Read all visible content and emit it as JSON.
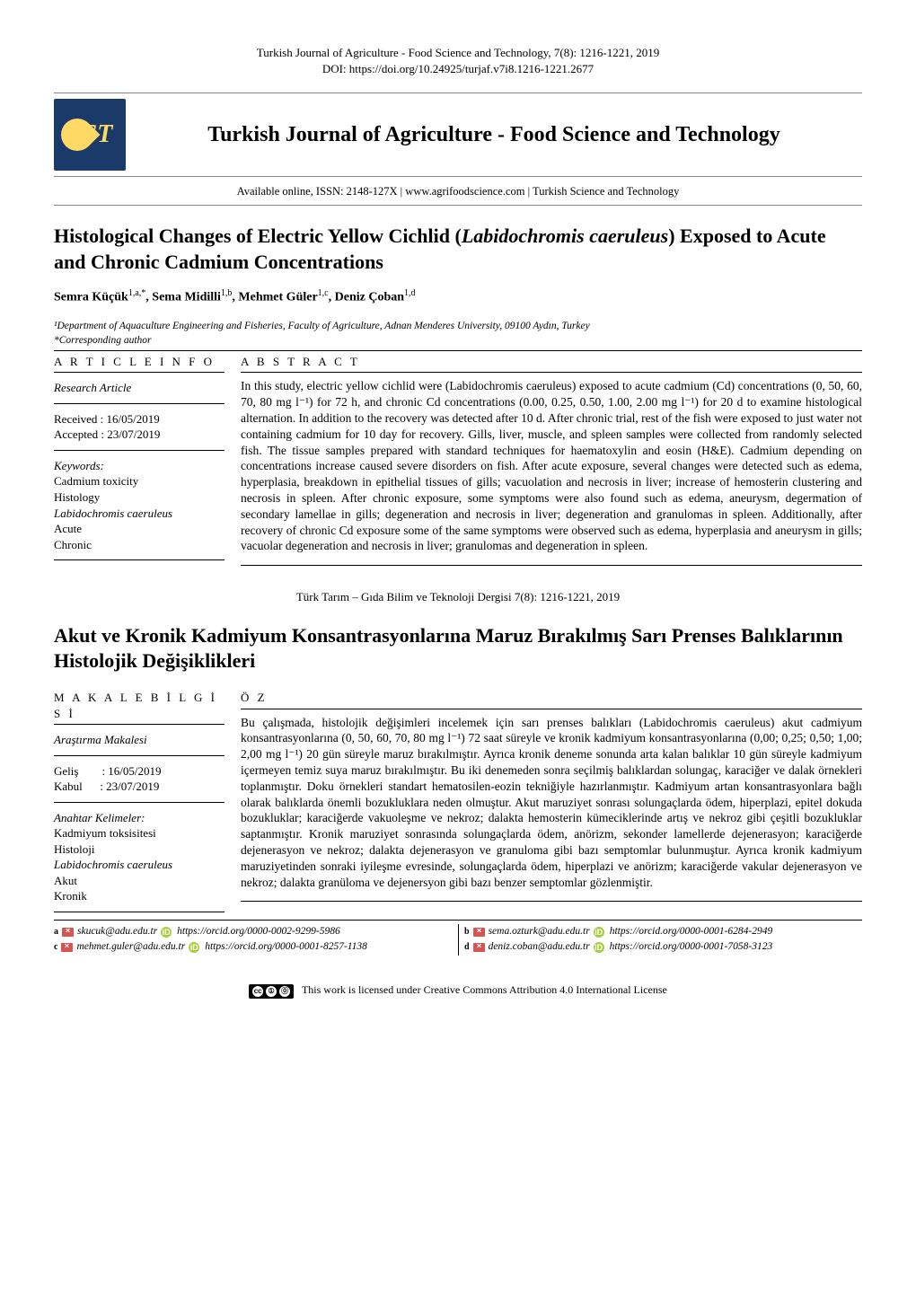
{
  "header": {
    "journal_full": "Turkish Journal of Agriculture - Food Science and Technology, 7(8): 1216-1221, 2019",
    "doi": "DOI: https://doi.org/10.24925/turjaf.v7i8.1216-1221.2677",
    "journal_title": "Turkish Journal of Agriculture - Food Science and Technology",
    "logo_text": "ST",
    "subline": "Available online, ISSN: 2148-127X  |  www.agrifoodscience.com  |  Turkish Science and Technology"
  },
  "english": {
    "title_pre": "Histological Changes of Electric Yellow Cichlid (",
    "title_italic": "Labidochromis caeruleus",
    "title_post": ") Exposed to Acute and Chronic Cadmium Concentrations",
    "authors_html": "Semra Küçük",
    "author1": "Semra Küçük",
    "author1_sup": "1,a,*",
    "author2": ", Sema Midilli",
    "author2_sup": "1,b",
    "author3": ", Mehmet Güler",
    "author3_sup": "1,c",
    "author4": ", Deniz Çoban",
    "author4_sup": "1,d",
    "affiliation": "¹Department of Aquaculture Engineering and Fisheries, Faculty of Agriculture, Adnan Menderes University, 09100 Aydın, Turkey",
    "corresponding": "*Corresponding author",
    "info_head": "A R T I C L E  I N F O",
    "abstract_head": "A B S T R A C T",
    "research_type": "Research Article",
    "received": "Received : 16/05/2019",
    "accepted": "Accepted : 23/07/2019",
    "keywords_label": "Keywords:",
    "kw1": "Cadmium toxicity",
    "kw2": "Histology",
    "kw3": "Labidochromis caeruleus",
    "kw4": "Acute",
    "kw5": "Chronic",
    "abstract": "In this study, electric yellow cichlid were (Labidochromis caeruleus) exposed to acute cadmium (Cd) concentrations (0, 50, 60, 70, 80 mg l⁻¹) for 72 h, and chronic Cd concentrations (0.00, 0.25, 0.50, 1.00, 2.00 mg l⁻¹) for 20 d to examine histological alternation. In addition to the recovery was detected after 10 d. After chronic trial, rest of the fish were exposed to just water not containing cadmium for 10 day for recovery. Gills, liver, muscle, and spleen samples were collected from randomly selected fish. The tissue samples prepared with standard techniques for haematoxylin and eosin (H&E). Cadmium depending on concentrations increase caused severe disorders on fish. After acute exposure, several changes were detected such as edema, hyperplasia, breakdown in epithelial tissues of gills; vacuolation and necrosis in liver; increase of hemosterin clustering and necrosis in spleen. After chronic exposure, some symptoms were also found such as edema, aneurysm, degermation of secondary lamellae in gills; degeneration and necrosis in liver; degeneration and granulomas in spleen. Additionally, after recovery of chronic Cd exposure some of the same symptoms were observed such as edema, hyperplasia and aneurysm in gills; vacuolar degeneration and necrosis in liver; granulomas and degeneration in spleen."
  },
  "turkish_citation": "Türk Tarım – Gıda Bilim ve Teknoloji Dergisi 7(8): 1216-1221, 2019",
  "turkish": {
    "title": "Akut ve Kronik Kadmiyum Konsantrasyonlarına Maruz Bırakılmış Sarı Prenses Balıklarının Histolojik Değişiklikleri",
    "info_head": "M A K A L E  B İ L G İ S İ",
    "abstract_head": "Ö Z",
    "research_type": "Araştırma Makalesi",
    "received": "Geliş        : 16/05/2019",
    "accepted": "Kabul      : 23/07/2019",
    "keywords_label": "Anahtar Kelimeler:",
    "kw1": "Kadmiyum toksisitesi",
    "kw2": "Histoloji",
    "kw3": "Labidochromis caeruleus",
    "kw4": "Akut",
    "kw5": "Kronik",
    "abstract": "Bu çalışmada, histolojik değişimleri incelemek için sarı prenses balıkları (Labidochromis caeruleus) akut cadmiyum konsantrasyonlarına (0, 50, 60, 70, 80 mg l⁻¹) 72 saat süreyle ve kronik kadmiyum konsantrasyonlarına (0,00; 0,25; 0,50; 1,00; 2,00 mg l⁻¹) 20 gün süreyle maruz bırakılmıştır. Ayrıca kronik deneme sonunda arta kalan balıklar 10 gün süreyle kadmiyum içermeyen temiz suya maruz bırakılmıştır. Bu iki denemeden sonra seçilmiş balıklardan solungaç, karaciğer ve dalak örnekleri toplanmıştır. Doku örnekleri standart hematosilen-eozin tekniğiyle hazırlanmıştır. Kadmiyum artan konsantrasyonlara bağlı olarak balıklarda önemli bozukluklara neden olmuştur. Akut maruziyet sonrası solungaçlarda ödem, hiperplazi, epitel dokuda bozukluklar; karaciğerde vakuoleşme ve nekroz; dalakta hemosterin kümeciklerinde artış ve nekroz gibi çeşitli bozukluklar saptanmıştır. Kronik maruziyet sonrasında solungaçlarda ödem, anörizm, sekonder lamellerde dejenerasyon; karaciğerde dejenerasyon ve nekroz; dalakta dejenerasyon ve granuloma gibi bazı semptomlar bulunmuştur. Ayrıca kronik kadmiyum maruziyetinden sonraki iyileşme evresinde, solungaçlarda ödem, hiperplazi ve anörizm; karaciğerde vakular dejenerasyon ve nekroz; dalakta granüloma ve dejenersyon gibi bazı benzer semptomlar gözlenmiştir."
  },
  "contacts": {
    "a_letter": "a",
    "a_email": "skucuk@adu.edu.tr",
    "a_orcid": "https://orcid.org/0000-0002-9299-5986",
    "b_letter": "b",
    "b_email": "sema.ozturk@adu.edu.tr",
    "b_orcid": "https://orcid.org/0000-0001-6284-2949",
    "c_letter": "c",
    "c_email": "mehmet.guler@adu.edu.tr",
    "c_orcid": "https://orcid.org/0000-0001-8257-1138",
    "d_letter": "d",
    "d_email": "deniz.coban@adu.edu.tr",
    "d_orcid": "https://orcid.org/0000-0001-7058-3123"
  },
  "license": "This work is licensed under Creative Commons Attribution 4.0 International License"
}
